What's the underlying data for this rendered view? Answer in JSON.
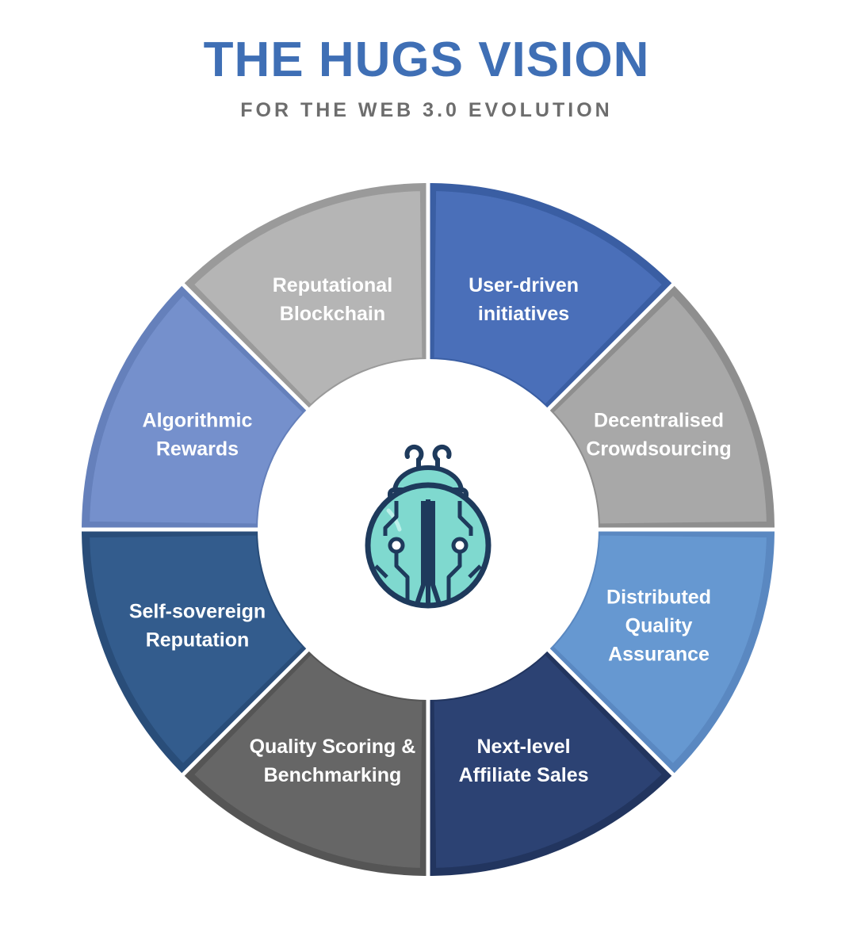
{
  "header": {
    "title": "THE HUGS VISION",
    "subtitle": "FOR THE WEB 3.0 EVOLUTION"
  },
  "colors": {
    "title": "#3f6fb5",
    "subtitle": "#6d6d6d",
    "segment_border_light": "#ffffff"
  },
  "center": {
    "icon": "ladybug-circuit-icon",
    "icon_fill": "#7fd9cf",
    "icon_stroke": "#1e3a5c"
  },
  "segments": [
    {
      "id": "user-driven-initiatives",
      "lines": [
        "User-driven",
        "initiatives"
      ],
      "fill": "#4a6fb9",
      "border": "#3a5ea3"
    },
    {
      "id": "decentralised-crowdsourcing",
      "lines": [
        "Decentralised",
        "Crowdsourcing"
      ],
      "fill": "#a8a8a8",
      "border": "#8e8e8e"
    },
    {
      "id": "distributed-quality-assurance",
      "lines": [
        "Distributed",
        "Quality",
        "Assurance"
      ],
      "fill": "#6698d1",
      "border": "#5a88c1"
    },
    {
      "id": "next-level-affiliate-sales",
      "lines": [
        "Next-level",
        "Affiliate Sales"
      ],
      "fill": "#2c4273",
      "border": "#22355f"
    },
    {
      "id": "quality-scoring-benchmarking",
      "lines": [
        "Quality Scoring &",
        "Benchmarking"
      ],
      "fill": "#666666",
      "border": "#555555"
    },
    {
      "id": "self-sovereign-reputation",
      "lines": [
        "Self-sovereign",
        "Reputation"
      ],
      "fill": "#335c8d",
      "border": "#294d79"
    },
    {
      "id": "algorithmic-rewards",
      "lines": [
        "Algorithmic",
        "Rewards"
      ],
      "fill": "#7590cc",
      "border": "#6580bb"
    },
    {
      "id": "reputational-blockchain",
      "lines": [
        "Reputational",
        "Blockchain"
      ],
      "fill": "#b5b5b5",
      "border": "#9a9a9a"
    }
  ]
}
